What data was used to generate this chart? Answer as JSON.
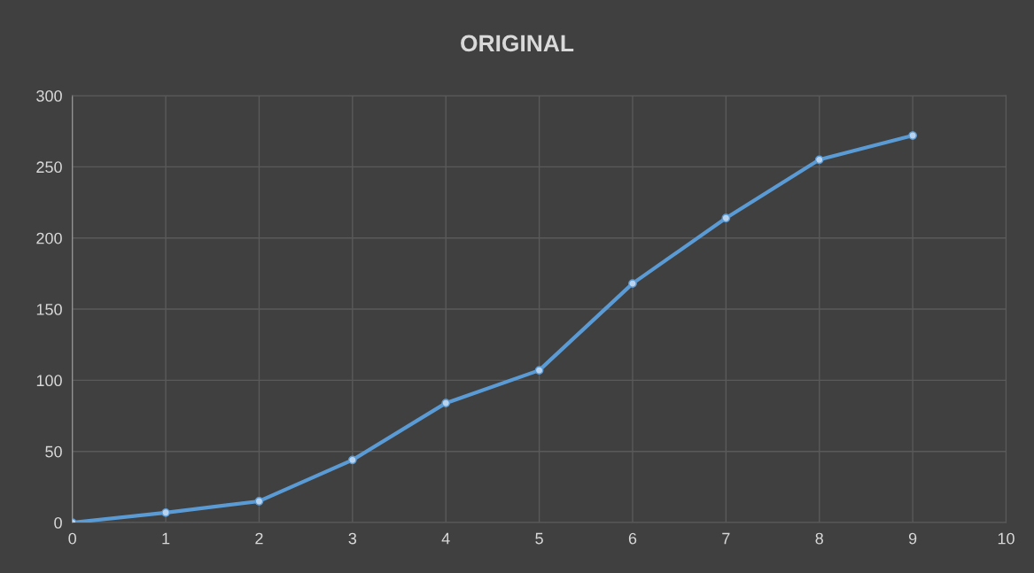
{
  "chart_data": {
    "type": "line",
    "title": "ORIGINAL",
    "x": [
      0,
      1,
      2,
      3,
      4,
      5,
      6,
      7,
      8,
      9
    ],
    "series": [
      {
        "color": "#5b9bd5",
        "values": [
          0,
          7,
          15,
          44,
          84,
          107,
          168,
          214,
          255,
          272
        ]
      }
    ],
    "xlim": [
      0,
      10
    ],
    "xticks": [
      0,
      1,
      2,
      3,
      4,
      5,
      6,
      7,
      8,
      9,
      10
    ],
    "ylim": [
      0,
      300
    ],
    "yticks": [
      0,
      50,
      100,
      150,
      200,
      250,
      300
    ],
    "grid": true,
    "marker": "circle",
    "line_style": "solid"
  }
}
